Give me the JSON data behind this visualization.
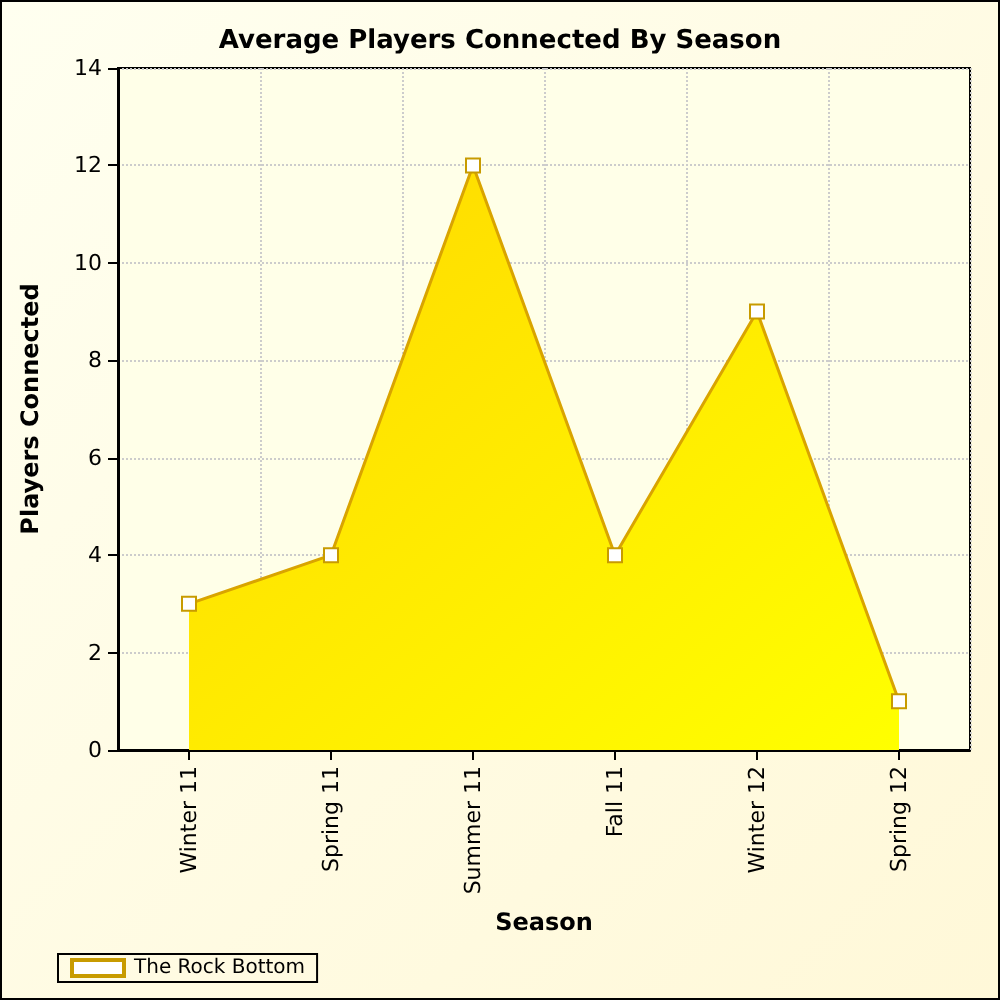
{
  "chart_data": {
    "type": "area",
    "title": "Average Players Connected By Season",
    "xlabel": "Season",
    "ylabel": "Players Connected",
    "categories": [
      "Winter 11",
      "Spring 11",
      "Summer 11",
      "Fall 11",
      "Winter 12",
      "Spring 12"
    ],
    "series": [
      {
        "name": "The Rock Bottom",
        "color": "#ffd700",
        "values": [
          3,
          4,
          12,
          4,
          9,
          1
        ]
      }
    ],
    "ylim": [
      0,
      14
    ],
    "yticks": [
      0,
      2,
      4,
      6,
      8,
      10,
      12,
      14
    ],
    "grid": true,
    "legend": "bottom left",
    "marker": "square",
    "line_style": "solid"
  }
}
